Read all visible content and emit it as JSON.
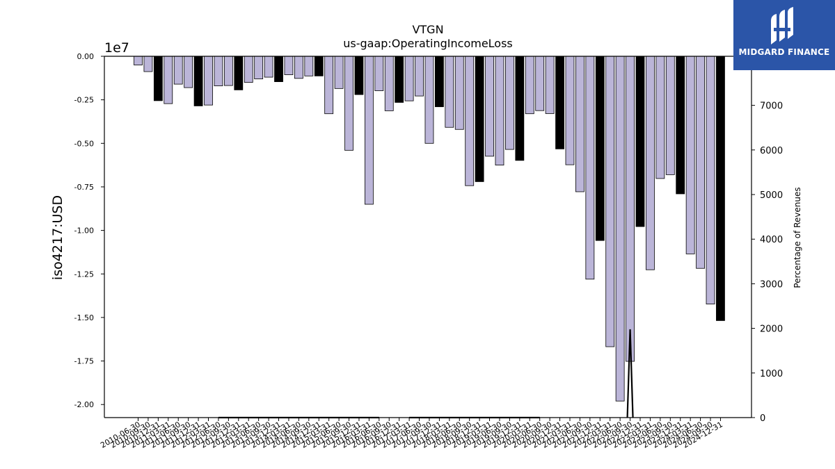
{
  "brand": {
    "name": "MIDGARD FINANCE",
    "bg_color": "#2b55a8"
  },
  "chart_data": {
    "type": "bar",
    "title": "VTGN",
    "subtitle": "us-gaap:OperatingIncomeLoss",
    "ylabel": "iso4217:USD",
    "y_offset_label": "1e7",
    "y2label": "Percentage of Revenues",
    "ylim": [
      -20750000.0,
      0
    ],
    "y2lim": [
      0,
      8100
    ],
    "grid": false,
    "colors": {
      "quarterly": "#bbb5d8",
      "annual": "#000000",
      "edge": "#000000"
    },
    "y_ticks": [
      {
        "value": 0,
        "label": "0.00"
      },
      {
        "value": -2500000,
        "label": "-0.25"
      },
      {
        "value": -5000000,
        "label": "-0.50"
      },
      {
        "value": -7500000,
        "label": "-0.75"
      },
      {
        "value": -10000000,
        "label": "-1.00"
      },
      {
        "value": -12500000,
        "label": "-1.25"
      },
      {
        "value": -15000000,
        "label": "-1.50"
      },
      {
        "value": -17500000,
        "label": "-1.75"
      },
      {
        "value": -20000000,
        "label": "-2.00"
      }
    ],
    "y2_ticks": [
      0,
      1000,
      2000,
      3000,
      4000,
      5000,
      6000,
      7000
    ],
    "categories": [
      "2010-06-30",
      "2010-09-30",
      "2010-12-31",
      "2011-03-31",
      "2011-06-30",
      "2011-09-30",
      "2011-12-31",
      "2012-03-31",
      "2012-06-30",
      "2012-09-30",
      "2012-12-31",
      "2013-03-31",
      "2013-06-30",
      "2013-09-30",
      "2013-12-31",
      "2014-03-31",
      "2014-06-30",
      "2014-09-30",
      "2014-12-31",
      "2015-03-31",
      "2015-06-30",
      "2015-09-30",
      "2015-12-31",
      "2016-03-31",
      "2016-06-30",
      "2016-09-30",
      "2016-12-31",
      "2017-03-31",
      "2017-06-30",
      "2017-09-30",
      "2017-12-31",
      "2018-03-31",
      "2018-06-30",
      "2018-09-30",
      "2018-12-31",
      "2019-03-31",
      "2019-06-30",
      "2019-09-30",
      "2019-12-31",
      "2020-03-31",
      "2020-06-30",
      "2020-09-30",
      "2020-12-31",
      "2021-03-31",
      "2021-06-30",
      "2021-09-30",
      "2021-12-31",
      "2022-03-31",
      "2022-06-30",
      "2022-09-30",
      "2022-12-31",
      "2023-03-31",
      "2023-06-30",
      "2023-09-30",
      "2023-12-31",
      "2024-03-31",
      "2024-06-30",
      "2024-09-30",
      "2024-12-31"
    ],
    "visible_tick_labels": [
      "2010-06-30",
      "2010-09-30",
      "2010-12-31",
      "2011-03-31",
      "2011-06-30",
      "2011-09-30",
      "2011-12-31",
      "2012-03-31",
      "2012-06-30",
      "2012-09-30",
      "2012-12-31",
      "2013-03-31",
      "2013-06-30",
      "2013-09-30",
      "2013-12-31",
      "2014-03-31",
      "2014-06-30",
      "2014-09-30",
      "2014-12-31",
      "2015-03-31",
      "2015-06-30",
      "2015-09-30",
      "2015-12-31",
      "2016-03-31",
      "2016-06-30",
      "2016-09-30",
      "2016-12-31",
      "2017-03-31",
      "2017-06-30",
      "2017-09-30",
      "2017-12-31",
      "2018-03-31",
      "2018-06-30",
      "2018-09-30",
      "2018-12-31",
      "2019-03-31",
      "2019-06-30",
      "2019-09-30",
      "2019-12-31",
      "2020-03-31",
      "2020-06-30",
      "2020-09-30",
      "2020-12-31",
      "2021-03-31",
      "2021-06-30",
      "2021-09-30",
      "2021-12-31",
      "2022-03-31",
      "2022-06-30",
      "2022-09-30",
      "2022-12-31",
      "2023-03-31",
      "2023-06-30",
      "2023-09-30",
      "2023-12-31",
      "2024-03-31",
      "2024-06-30",
      "2024-09-30",
      "2024-12-31"
    ],
    "values": [
      -500000,
      -880000,
      -2550000,
      -2720000,
      -1600000,
      -1800000,
      -2850000,
      -2800000,
      -1700000,
      -1680000,
      -1930000,
      -1500000,
      -1300000,
      -1200000,
      -1460000,
      -1060000,
      -1270000,
      -1130000,
      -1130000,
      -3300000,
      -1850000,
      -5400000,
      -2200000,
      -8500000,
      -1980000,
      -3130000,
      -2650000,
      -2560000,
      -2280000,
      -5000000,
      -2900000,
      -4080000,
      -4200000,
      -7430000,
      -7200000,
      -5740000,
      -6250000,
      -5350000,
      -5980000,
      -3300000,
      -3120000,
      -3290000,
      -5320000,
      -6230000,
      -7780000,
      -12800000,
      -10580000,
      -16680000,
      -19800000,
      -17520000,
      -9780000,
      -12260000,
      -7020000,
      -6800000,
      -7900000,
      -11350000,
      -12180000,
      -14230000,
      -15180000
    ],
    "is_annual": [
      false,
      false,
      true,
      false,
      false,
      false,
      true,
      false,
      false,
      false,
      true,
      false,
      false,
      false,
      true,
      false,
      false,
      false,
      true,
      false,
      false,
      false,
      true,
      false,
      false,
      false,
      true,
      false,
      false,
      false,
      true,
      false,
      false,
      false,
      true,
      false,
      false,
      false,
      true,
      false,
      false,
      false,
      true,
      false,
      false,
      false,
      true,
      false,
      false,
      false,
      true,
      false,
      false,
      false,
      true,
      false,
      false,
      false,
      true
    ],
    "pct_of_revenues": [
      null,
      null,
      null,
      null,
      null,
      null,
      null,
      null,
      0,
      0,
      0,
      0,
      0,
      0,
      0,
      0,
      0,
      0,
      0,
      0,
      0,
      0,
      0,
      0,
      0,
      null,
      null,
      0,
      0,
      0,
      0,
      0,
      0,
      0,
      0,
      0,
      0,
      0,
      0,
      0,
      0,
      null,
      null,
      null,
      null,
      null,
      null,
      null,
      null,
      1980,
      null,
      null,
      null,
      null,
      null,
      null,
      null,
      null,
      null
    ]
  }
}
